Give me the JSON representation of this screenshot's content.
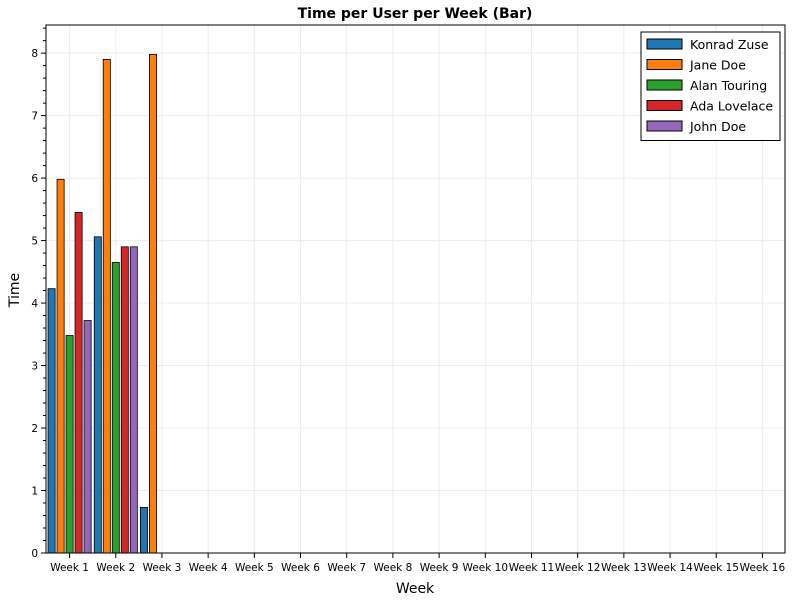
{
  "chart_data": {
    "type": "bar",
    "title": "Time per User per Week (Bar)",
    "xlabel": "Week",
    "ylabel": "Time",
    "ylim": [
      0,
      8.45
    ],
    "yticks": [
      0,
      1,
      2,
      3,
      4,
      5,
      6,
      7,
      8
    ],
    "grid": true,
    "legend_position": "top-right",
    "categories": [
      "Week 1",
      "Week 2",
      "Week 3",
      "Week 4",
      "Week 5",
      "Week 6",
      "Week 7",
      "Week 8",
      "Week 9",
      "Week 10",
      "Week 11",
      "Week 12",
      "Week 13",
      "Week 14",
      "Week 15",
      "Week 16"
    ],
    "series": [
      {
        "name": "Konrad Zuse",
        "color": "#1f77b4",
        "values": [
          4.23,
          5.06,
          0.73,
          null,
          null,
          null,
          null,
          null,
          null,
          null,
          null,
          null,
          null,
          null,
          null,
          null
        ]
      },
      {
        "name": "Jane Doe",
        "color": "#ff7f0e",
        "values": [
          5.98,
          7.9,
          7.98,
          null,
          null,
          null,
          null,
          null,
          null,
          null,
          null,
          null,
          null,
          null,
          null,
          null
        ]
      },
      {
        "name": "Alan Touring",
        "color": "#2ca02c",
        "values": [
          3.48,
          4.65,
          null,
          null,
          null,
          null,
          null,
          null,
          null,
          null,
          null,
          null,
          null,
          null,
          null,
          null
        ]
      },
      {
        "name": "Ada Lovelace",
        "color": "#d62728",
        "values": [
          5.45,
          4.9,
          null,
          null,
          null,
          null,
          null,
          null,
          null,
          null,
          null,
          null,
          null,
          null,
          null,
          null
        ]
      },
      {
        "name": "John Doe",
        "color": "#9467bd",
        "values": [
          3.72,
          4.9,
          null,
          null,
          null,
          null,
          null,
          null,
          null,
          null,
          null,
          null,
          null,
          null,
          null,
          null
        ]
      }
    ]
  }
}
